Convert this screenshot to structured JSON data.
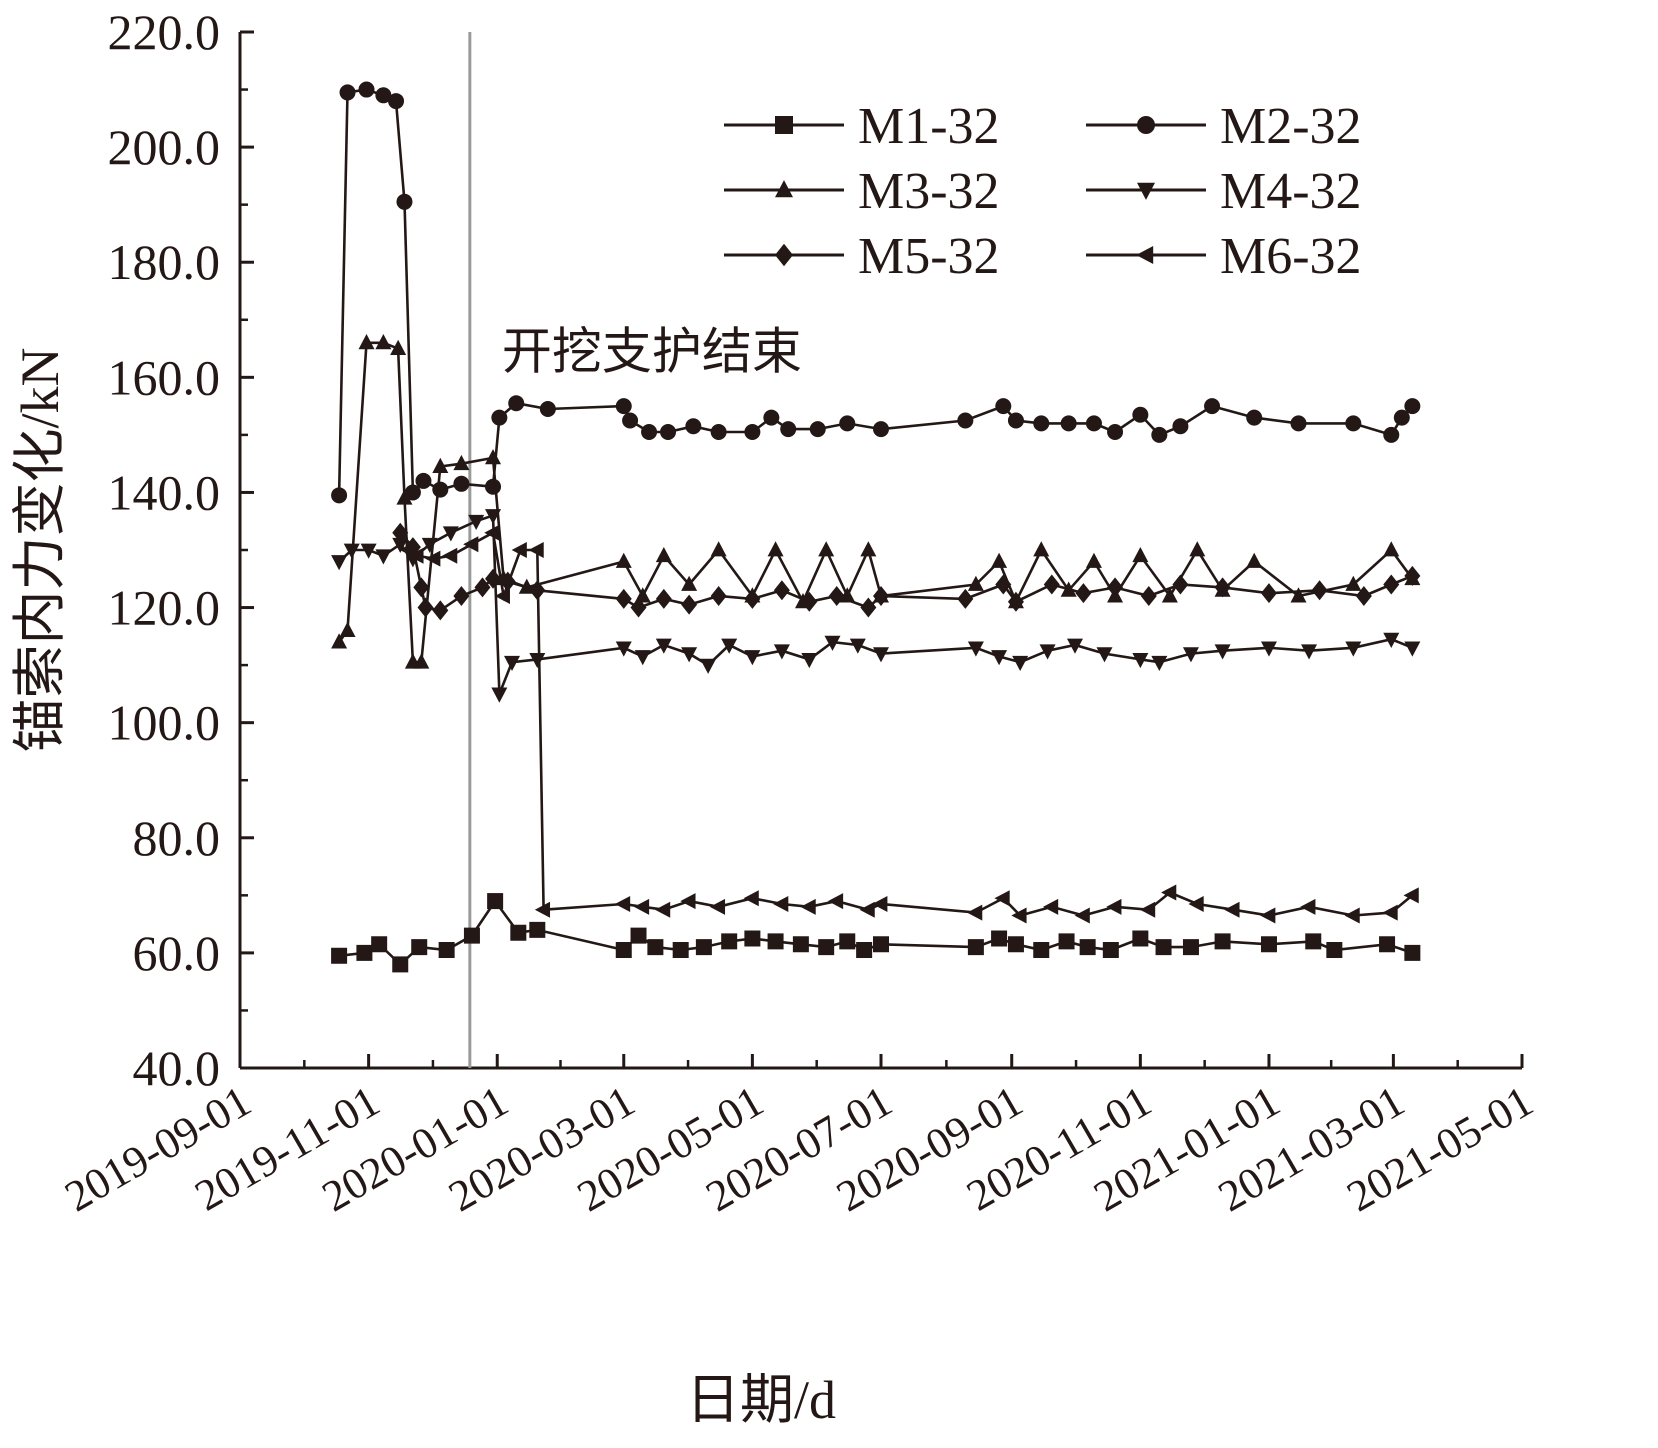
{
  "chart_data": {
    "type": "line",
    "title": "",
    "xlabel": "日期/d",
    "ylabel": "锚索内力变化/kN",
    "ylim": [
      40,
      220
    ],
    "y_ticks": [
      "40.0",
      "60.0",
      "80.0",
      "100.0",
      "120.0",
      "140.0",
      "160.0",
      "180.0",
      "200.0",
      "220.0"
    ],
    "xlim": [
      "2019-09-01",
      "2021-05-01"
    ],
    "x_ticks": [
      "2019-09-01",
      "2019-11-01",
      "2020-01-01",
      "2020-03-01",
      "2020-05-01",
      "2020-07-01",
      "2020-09-01",
      "2020-11-01",
      "2021-01-01",
      "2021-03-01",
      "2021-05-01"
    ],
    "legend_position": "top-right",
    "grid": false,
    "annotation": {
      "text": "开挖支护结束",
      "x": "2019-12-19"
    },
    "series": [
      {
        "name": "M1-32",
        "marker": "square",
        "points": [
          [
            "2019-10-18",
            59.5
          ],
          [
            "2019-10-30",
            60.0
          ],
          [
            "2019-11-06",
            61.5
          ],
          [
            "2019-11-16",
            58.0
          ],
          [
            "2019-11-25",
            61.0
          ],
          [
            "2019-12-08",
            60.5
          ],
          [
            "2019-12-20",
            63.0
          ],
          [
            "2019-12-31",
            69.0
          ],
          [
            "2020-01-11",
            63.5
          ],
          [
            "2020-01-20",
            64.0
          ],
          [
            "2020-03-01",
            60.5
          ],
          [
            "2020-03-08",
            63.0
          ],
          [
            "2020-03-16",
            61.0
          ],
          [
            "2020-03-28",
            60.5
          ],
          [
            "2020-04-08",
            61.0
          ],
          [
            "2020-04-20",
            62.0
          ],
          [
            "2020-05-01",
            62.5
          ],
          [
            "2020-05-12",
            62.0
          ],
          [
            "2020-05-24",
            61.5
          ],
          [
            "2020-06-05",
            61.0
          ],
          [
            "2020-06-15",
            62.0
          ],
          [
            "2020-06-23",
            60.5
          ],
          [
            "2020-07-01",
            61.5
          ],
          [
            "2020-08-15",
            61.0
          ],
          [
            "2020-08-26",
            62.5
          ],
          [
            "2020-09-03",
            61.5
          ],
          [
            "2020-09-15",
            60.5
          ],
          [
            "2020-09-27",
            62.0
          ],
          [
            "2020-10-07",
            61.0
          ],
          [
            "2020-10-18",
            60.5
          ],
          [
            "2020-11-01",
            62.5
          ],
          [
            "2020-11-12",
            61.0
          ],
          [
            "2020-11-25",
            61.0
          ],
          [
            "2020-12-10",
            62.0
          ],
          [
            "2021-01-01",
            61.5
          ],
          [
            "2021-01-22",
            62.0
          ],
          [
            "2021-02-01",
            60.5
          ],
          [
            "2021-02-26",
            61.5
          ],
          [
            "2021-03-10",
            60.0
          ]
        ]
      },
      {
        "name": "M2-32",
        "marker": "circle",
        "points": [
          [
            "2019-10-18",
            139.5
          ],
          [
            "2019-10-22",
            209.5
          ],
          [
            "2019-10-31",
            210.0
          ],
          [
            "2019-11-08",
            209.0
          ],
          [
            "2019-11-14",
            208.0
          ],
          [
            "2019-11-18",
            190.5
          ],
          [
            "2019-11-22",
            140.0
          ],
          [
            "2019-11-27",
            142.0
          ],
          [
            "2019-12-05",
            140.5
          ],
          [
            "2019-12-15",
            141.5
          ],
          [
            "2019-12-30",
            141.0
          ],
          [
            "2020-01-02",
            153.0
          ],
          [
            "2020-01-10",
            155.5
          ],
          [
            "2020-01-25",
            154.5
          ],
          [
            "2020-03-01",
            155.0
          ],
          [
            "2020-03-04",
            152.5
          ],
          [
            "2020-03-13",
            150.5
          ],
          [
            "2020-03-22",
            150.5
          ],
          [
            "2020-04-03",
            151.5
          ],
          [
            "2020-04-15",
            150.5
          ],
          [
            "2020-05-01",
            150.5
          ],
          [
            "2020-05-10",
            153.0
          ],
          [
            "2020-05-18",
            151.0
          ],
          [
            "2020-06-01",
            151.0
          ],
          [
            "2020-06-15",
            152.0
          ],
          [
            "2020-07-01",
            151.0
          ],
          [
            "2020-08-10",
            152.5
          ],
          [
            "2020-08-28",
            155.0
          ],
          [
            "2020-09-03",
            152.5
          ],
          [
            "2020-09-15",
            152.0
          ],
          [
            "2020-09-28",
            152.0
          ],
          [
            "2020-10-10",
            152.0
          ],
          [
            "2020-10-20",
            150.5
          ],
          [
            "2020-11-01",
            153.5
          ],
          [
            "2020-11-10",
            150.0
          ],
          [
            "2020-11-20",
            151.5
          ],
          [
            "2020-12-05",
            155.0
          ],
          [
            "2020-12-25",
            153.0
          ],
          [
            "2021-01-15",
            152.0
          ],
          [
            "2021-02-10",
            152.0
          ],
          [
            "2021-02-28",
            150.0
          ],
          [
            "2021-03-05",
            153.0
          ],
          [
            "2021-03-10",
            155.0
          ]
        ]
      },
      {
        "name": "M3-32",
        "marker": "triangle-up",
        "points": [
          [
            "2019-10-18",
            114.0
          ],
          [
            "2019-10-22",
            116.0
          ],
          [
            "2019-10-31",
            166.0
          ],
          [
            "2019-11-08",
            166.0
          ],
          [
            "2019-11-15",
            165.0
          ],
          [
            "2019-11-18",
            139.0
          ],
          [
            "2019-11-22",
            110.5
          ],
          [
            "2019-11-26",
            110.5
          ],
          [
            "2019-12-05",
            144.5
          ],
          [
            "2019-12-15",
            145.0
          ],
          [
            "2019-12-30",
            146.0
          ],
          [
            "2020-01-04",
            125.0
          ],
          [
            "2020-01-15",
            123.5
          ],
          [
            "2020-03-01",
            128.0
          ],
          [
            "2020-03-10",
            122.0
          ],
          [
            "2020-03-20",
            129.0
          ],
          [
            "2020-04-01",
            124.0
          ],
          [
            "2020-04-15",
            130.0
          ],
          [
            "2020-05-01",
            122.0
          ],
          [
            "2020-05-12",
            130.0
          ],
          [
            "2020-05-25",
            121.0
          ],
          [
            "2020-06-05",
            130.0
          ],
          [
            "2020-06-15",
            122.0
          ],
          [
            "2020-06-25",
            130.0
          ],
          [
            "2020-07-01",
            122.0
          ],
          [
            "2020-08-15",
            124.0
          ],
          [
            "2020-08-26",
            128.0
          ],
          [
            "2020-09-03",
            121.0
          ],
          [
            "2020-09-15",
            130.0
          ],
          [
            "2020-09-28",
            123.0
          ],
          [
            "2020-10-10",
            128.0
          ],
          [
            "2020-10-20",
            122.0
          ],
          [
            "2020-11-01",
            129.0
          ],
          [
            "2020-11-15",
            122.0
          ],
          [
            "2020-11-28",
            130.0
          ],
          [
            "2020-12-10",
            123.0
          ],
          [
            "2020-12-25",
            128.0
          ],
          [
            "2021-01-15",
            122.0
          ],
          [
            "2021-02-10",
            124.0
          ],
          [
            "2021-02-28",
            130.0
          ],
          [
            "2021-03-10",
            125.0
          ]
        ]
      },
      {
        "name": "M4-32",
        "marker": "triangle-down",
        "points": [
          [
            "2019-10-18",
            128.0
          ],
          [
            "2019-10-24",
            130.0
          ],
          [
            "2019-11-01",
            130.0
          ],
          [
            "2019-11-08",
            129.0
          ],
          [
            "2019-11-16",
            131.0
          ],
          [
            "2019-11-22",
            128.5
          ],
          [
            "2019-11-30",
            131.0
          ],
          [
            "2019-12-10",
            133.0
          ],
          [
            "2019-12-22",
            135.0
          ],
          [
            "2019-12-30",
            136.0
          ],
          [
            "2020-01-02",
            105.0
          ],
          [
            "2020-01-08",
            110.5
          ],
          [
            "2020-01-20",
            111.0
          ],
          [
            "2020-03-01",
            113.0
          ],
          [
            "2020-03-10",
            111.5
          ],
          [
            "2020-03-20",
            113.5
          ],
          [
            "2020-04-01",
            112.0
          ],
          [
            "2020-04-10",
            110.0
          ],
          [
            "2020-04-20",
            113.5
          ],
          [
            "2020-05-01",
            111.5
          ],
          [
            "2020-05-15",
            112.5
          ],
          [
            "2020-05-28",
            111.0
          ],
          [
            "2020-06-08",
            114.0
          ],
          [
            "2020-06-20",
            113.5
          ],
          [
            "2020-07-01",
            112.0
          ],
          [
            "2020-08-15",
            113.0
          ],
          [
            "2020-08-26",
            111.5
          ],
          [
            "2020-09-05",
            110.5
          ],
          [
            "2020-09-18",
            112.5
          ],
          [
            "2020-10-01",
            113.5
          ],
          [
            "2020-10-15",
            112.0
          ],
          [
            "2020-11-01",
            111.0
          ],
          [
            "2020-11-10",
            110.5
          ],
          [
            "2020-11-25",
            112.0
          ],
          [
            "2020-12-10",
            112.5
          ],
          [
            "2021-01-01",
            113.0
          ],
          [
            "2021-01-20",
            112.5
          ],
          [
            "2021-02-10",
            113.0
          ],
          [
            "2021-02-28",
            114.5
          ],
          [
            "2021-03-10",
            113.0
          ]
        ]
      },
      {
        "name": "M5-32",
        "marker": "diamond",
        "points": [
          [
            "2019-11-16",
            133.0
          ],
          [
            "2019-11-22",
            130.5
          ],
          [
            "2019-11-26",
            123.5
          ],
          [
            "2019-11-28",
            120.0
          ],
          [
            "2019-12-05",
            119.5
          ],
          [
            "2019-12-15",
            122.0
          ],
          [
            "2019-12-25",
            123.5
          ],
          [
            "2019-12-30",
            125.0
          ],
          [
            "2020-01-06",
            124.5
          ],
          [
            "2020-01-20",
            123.0
          ],
          [
            "2020-03-01",
            121.5
          ],
          [
            "2020-03-08",
            120.0
          ],
          [
            "2020-03-20",
            121.5
          ],
          [
            "2020-04-01",
            120.5
          ],
          [
            "2020-04-15",
            122.0
          ],
          [
            "2020-05-01",
            121.5
          ],
          [
            "2020-05-15",
            123.0
          ],
          [
            "2020-05-28",
            121.0
          ],
          [
            "2020-06-10",
            122.0
          ],
          [
            "2020-06-25",
            120.0
          ],
          [
            "2020-07-01",
            122.0
          ],
          [
            "2020-08-10",
            121.5
          ],
          [
            "2020-08-28",
            124.0
          ],
          [
            "2020-09-03",
            121.0
          ],
          [
            "2020-09-20",
            124.0
          ],
          [
            "2020-10-05",
            122.5
          ],
          [
            "2020-10-20",
            123.5
          ],
          [
            "2020-11-05",
            122.0
          ],
          [
            "2020-11-20",
            124.0
          ],
          [
            "2020-12-10",
            123.5
          ],
          [
            "2021-01-01",
            122.5
          ],
          [
            "2021-01-25",
            123.0
          ],
          [
            "2021-02-15",
            122.0
          ],
          [
            "2021-02-28",
            124.0
          ],
          [
            "2021-03-10",
            125.5
          ]
        ]
      },
      {
        "name": "M6-32",
        "marker": "triangle-left",
        "points": [
          [
            "2019-11-20",
            130.0
          ],
          [
            "2019-11-24",
            129.0
          ],
          [
            "2019-12-02",
            128.5
          ],
          [
            "2019-12-10",
            129.0
          ],
          [
            "2019-12-20",
            131.0
          ],
          [
            "2019-12-30",
            133.0
          ],
          [
            "2020-01-04",
            122.0
          ],
          [
            "2020-01-12",
            130.0
          ],
          [
            "2020-01-20",
            130.0
          ],
          [
            "2020-01-23",
            67.5
          ],
          [
            "2020-03-01",
            68.5
          ],
          [
            "2020-03-10",
            68.0
          ],
          [
            "2020-03-20",
            67.5
          ],
          [
            "2020-04-01",
            69.0
          ],
          [
            "2020-04-15",
            68.0
          ],
          [
            "2020-05-01",
            69.5
          ],
          [
            "2020-05-15",
            68.5
          ],
          [
            "2020-05-28",
            68.0
          ],
          [
            "2020-06-10",
            69.0
          ],
          [
            "2020-06-25",
            67.5
          ],
          [
            "2020-07-01",
            68.5
          ],
          [
            "2020-08-15",
            67.0
          ],
          [
            "2020-08-28",
            69.5
          ],
          [
            "2020-09-05",
            66.5
          ],
          [
            "2020-09-20",
            68.0
          ],
          [
            "2020-10-05",
            66.5
          ],
          [
            "2020-10-20",
            68.0
          ],
          [
            "2020-11-05",
            67.5
          ],
          [
            "2020-11-15",
            70.5
          ],
          [
            "2020-11-28",
            68.5
          ],
          [
            "2020-12-15",
            67.5
          ],
          [
            "2021-01-01",
            66.5
          ],
          [
            "2021-01-20",
            68.0
          ],
          [
            "2021-02-10",
            66.5
          ],
          [
            "2021-02-28",
            67.0
          ],
          [
            "2021-03-10",
            70.0
          ]
        ]
      }
    ]
  }
}
